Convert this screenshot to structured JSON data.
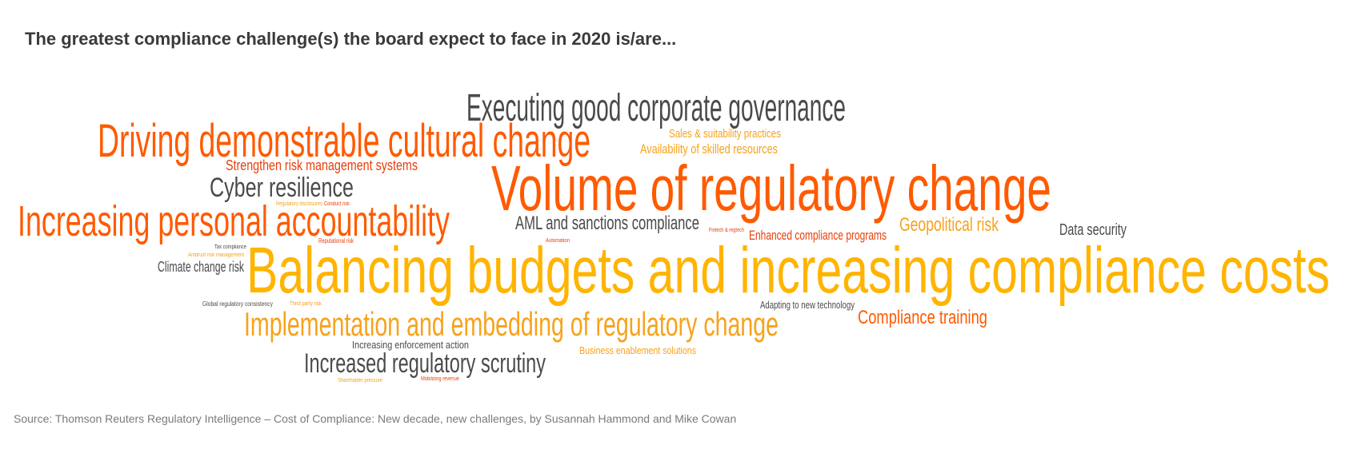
{
  "title": "The greatest compliance challenge(s) the board expect to face in 2020 is/are...",
  "colors": {
    "dark_gray": "#4a4a4a",
    "orange_red": "#ff5a00",
    "red": "#e8400c",
    "gold": "#ffb400",
    "amber": "#f7a21b",
    "title": "#3a3a3a",
    "source": "#7a7a7a"
  },
  "word_cloud": {
    "executing_governance": "Executing good corporate governance",
    "cultural_change": "Driving demonstrable cultural change",
    "sales_suitability": "Sales & suitability practices",
    "skilled_resources": "Availability of skilled resources",
    "strengthen_risk": "Strengthen risk management systems",
    "cyber_resilience": "Cyber resilience",
    "volume_change": "Volume of regulatory change",
    "regulatory_disclosures": "Regulatory disclosures",
    "conduct_risk": "Conduct risk",
    "personal_accountability": "Increasing personal accountability",
    "aml_sanctions": "AML and sanctions compliance",
    "fintech_regtech": "Fintech & regtech",
    "enhanced_programs": "Enhanced compliance programs",
    "geopolitical_risk": "Geopolitical risk",
    "data_security": "Data security",
    "reputational_risk": "Reputational risk",
    "automation": "Automation",
    "tax_compliance": "Tax compliance",
    "antitrust": "Antitrust risk management",
    "climate_change": "Climate change risk",
    "balancing_budgets": "Balancing budgets and increasing compliance costs",
    "global_consistency": "Global regulatory consistency",
    "third_party": "Third party risk",
    "adapting_technology": "Adapting to new technology",
    "implementation": "Implementation and embedding of regulatory change",
    "compliance_training": "Compliance training",
    "enforcement_action": "Increasing enforcement action",
    "business_enablement": "Business enablement solutions",
    "increased_scrutiny": "Increased regulatory scrutiny",
    "shareholder_pressure": "Shareholder pressure",
    "mobilizing_revenue": "Mobilizing revenue"
  },
  "source": "Source: Thomson Reuters Regulatory Intelligence – Cost of Compliance: New decade, new challenges, by Susannah Hammond and Mike Cowan"
}
